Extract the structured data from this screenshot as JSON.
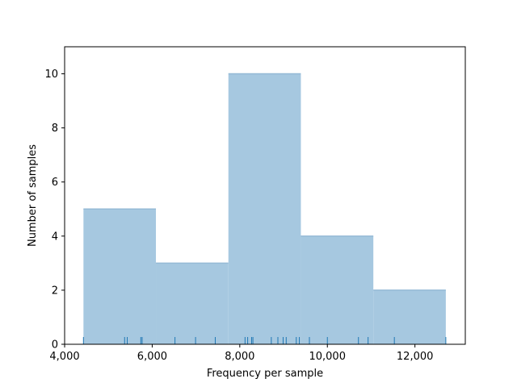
{
  "chart_data": {
    "type": "bar",
    "subtype": "histogram",
    "title": "",
    "xlabel": "Frequency per sample",
    "ylabel": "Number of samples",
    "xlim": [
      4000,
      13150
    ],
    "ylim": [
      0,
      11
    ],
    "xticks": [
      4000,
      6000,
      8000,
      10000,
      12000
    ],
    "xtick_labels": [
      "4,000",
      "6,000",
      "8,000",
      "10,000",
      "12,000"
    ],
    "yticks": [
      0,
      2,
      4,
      6,
      8,
      10
    ],
    "ytick_labels": [
      "0",
      "2",
      "4",
      "6",
      "8",
      "10"
    ],
    "bins": [
      {
        "x0": 4430,
        "x1": 6085,
        "count": 5
      },
      {
        "x0": 6085,
        "x1": 7740,
        "count": 3
      },
      {
        "x0": 7740,
        "x1": 9395,
        "count": 10
      },
      {
        "x0": 9395,
        "x1": 11050,
        "count": 4
      },
      {
        "x0": 11050,
        "x1": 12705,
        "count": 2
      }
    ],
    "rug": [
      4430,
      5370,
      5430,
      5740,
      5770,
      6520,
      6990,
      7440,
      8120,
      8180,
      8270,
      8300,
      8720,
      8870,
      8990,
      9060,
      9290,
      9360,
      9590,
      10000,
      10710,
      10930,
      11530,
      12705
    ],
    "grid": false,
    "legend": "none",
    "colors": {
      "bar": "#a6c8e0",
      "rug": "#1f77b4",
      "axis": "#000000"
    }
  }
}
